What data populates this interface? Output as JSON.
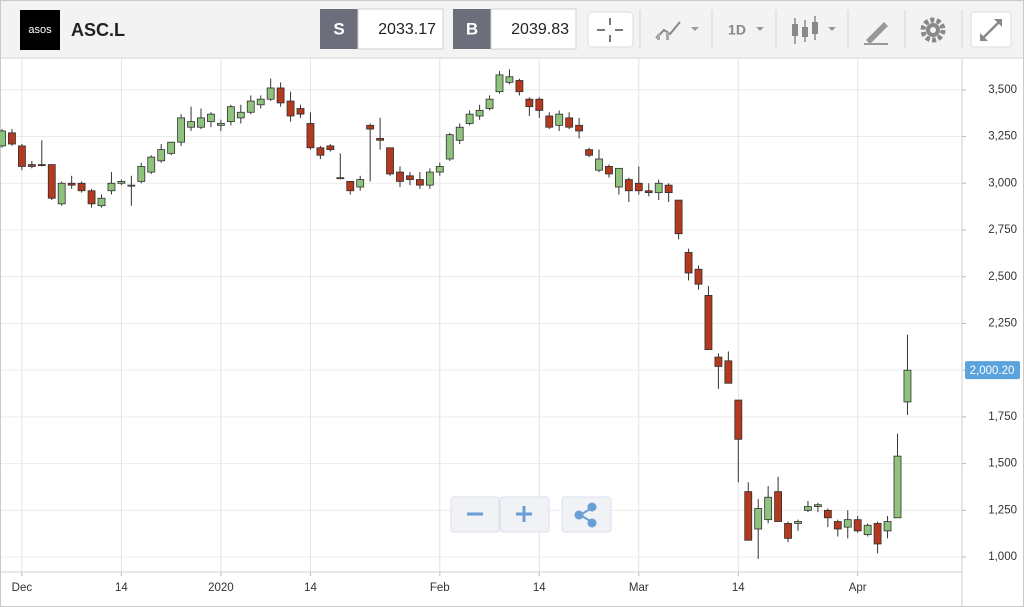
{
  "toolbar": {
    "logo": "asos",
    "symbol": "ASC.L",
    "sell_label": "S",
    "sell": 2033.17,
    "buy_label": "B",
    "buy": 2039.83,
    "interval": "1D"
  },
  "chart_data": {
    "type": "candlestick",
    "categories": [
      null,
      null,
      "Dec",
      null,
      null,
      null,
      null,
      null,
      null,
      null,
      null,
      null,
      "14",
      null,
      null,
      null,
      null,
      null,
      null,
      null,
      null,
      null,
      "2020",
      null,
      null,
      null,
      null,
      null,
      null,
      null,
      null,
      "14",
      null,
      null,
      null,
      null,
      null,
      null,
      null,
      null,
      null,
      null,
      null,
      null,
      "Feb",
      null,
      null,
      null,
      null,
      null,
      null,
      null,
      null,
      null,
      "14",
      null,
      null,
      null,
      null,
      null,
      null,
      null,
      null,
      null,
      "Mar",
      null,
      null,
      null,
      null,
      null,
      null,
      null,
      null,
      null,
      "14",
      null,
      null,
      null,
      null,
      null,
      null,
      null,
      null,
      null,
      null,
      null,
      "Apr",
      null,
      null,
      null,
      null,
      null
    ],
    "open": [
      3200,
      3270,
      3200,
      3100,
      3100,
      3100,
      2890,
      3000,
      3000,
      2960,
      2880,
      2960,
      3000,
      2990,
      3010,
      3060,
      3120,
      3160,
      3220,
      3300,
      3300,
      3330,
      3310,
      3330,
      3350,
      3380,
      3420,
      3450,
      3510,
      3440,
      3400,
      3320,
      3190,
      3200,
      3030,
      3010,
      2980,
      3310,
      3240,
      3190,
      3060,
      3040,
      3020,
      2990,
      3060,
      3130,
      3230,
      3320,
      3360,
      3400,
      3490,
      3540,
      3550,
      3450,
      3450,
      3360,
      3310,
      3350,
      3310,
      3180,
      3070,
      3090,
      2980,
      3020,
      3000,
      2960,
      2950,
      2990,
      2910,
      2630,
      2540,
      2400,
      2070,
      2050,
      1840,
      1350,
      1150,
      1200,
      1350,
      1180,
      1180,
      1250,
      1270,
      1250,
      1190,
      1160,
      1200,
      1120,
      1180,
      1140,
      1210,
      1830
    ],
    "high": [
      3290,
      3290,
      3210,
      3120,
      3230,
      3100,
      3010,
      3040,
      3010,
      2970,
      2940,
      3060,
      3020,
      3040,
      3110,
      3150,
      3210,
      3220,
      3370,
      3410,
      3400,
      3380,
      3340,
      3420,
      3420,
      3470,
      3470,
      3560,
      3540,
      3490,
      3420,
      3380,
      3200,
      3210,
      3160,
      3010,
      3040,
      3320,
      3350,
      3190,
      3090,
      3060,
      3060,
      3080,
      3110,
      3270,
      3320,
      3390,
      3420,
      3470,
      3600,
      3610,
      3560,
      3460,
      3460,
      3380,
      3390,
      3380,
      3350,
      3190,
      3180,
      3100,
      3080,
      3030,
      3090,
      3000,
      3020,
      3000,
      2910,
      2650,
      2560,
      2450,
      2090,
      2100,
      1840,
      1400,
      1310,
      1380,
      1430,
      1190,
      1200,
      1300,
      1290,
      1260,
      1200,
      1250,
      1220,
      1180,
      1190,
      1220,
      1660,
      2190
    ],
    "low": [
      3190,
      3200,
      3070,
      3080,
      3090,
      2910,
      2880,
      2970,
      2950,
      2870,
      2870,
      2940,
      2990,
      2880,
      3000,
      3050,
      3110,
      3150,
      3200,
      3280,
      3290,
      3300,
      3280,
      3310,
      3320,
      3370,
      3400,
      3440,
      3410,
      3330,
      3350,
      3180,
      3130,
      3170,
      3020,
      2940,
      2960,
      3010,
      3180,
      3040,
      2980,
      2990,
      2970,
      2970,
      3040,
      3120,
      3210,
      3310,
      3340,
      3390,
      3480,
      3530,
      3470,
      3360,
      3350,
      3290,
      3280,
      3290,
      3240,
      3140,
      3060,
      3030,
      2940,
      2900,
      2940,
      2930,
      2910,
      2900,
      2700,
      2480,
      2430,
      2110,
      1900,
      1930,
      1400,
      1090,
      990,
      1180,
      1190,
      1080,
      1140,
      1240,
      1240,
      1160,
      1110,
      1100,
      1130,
      1110,
      1020,
      1100,
      1210,
      1760
    ],
    "close": [
      3280,
      3210,
      3090,
      3090,
      3095,
      2920,
      3000,
      2990,
      2960,
      2890,
      2920,
      3000,
      3010,
      2990,
      3090,
      3140,
      3180,
      3220,
      3350,
      3330,
      3350,
      3370,
      3320,
      3410,
      3380,
      3440,
      3450,
      3510,
      3430,
      3360,
      3370,
      3190,
      3150,
      3180,
      3030,
      2960,
      3020,
      3290,
      3230,
      3050,
      3010,
      3020,
      2990,
      3060,
      3090,
      3260,
      3300,
      3370,
      3390,
      3450,
      3580,
      3570,
      3490,
      3410,
      3390,
      3300,
      3370,
      3300,
      3280,
      3150,
      3130,
      3050,
      3080,
      2960,
      2960,
      2950,
      3000,
      2950,
      2730,
      2520,
      2460,
      2110,
      2020,
      1930,
      1630,
      1090,
      1260,
      1320,
      1190,
      1100,
      1190,
      1270,
      1280,
      1210,
      1150,
      1200,
      1140,
      1170,
      1070,
      1190,
      1540,
      2000
    ],
    "up_color": "#8fc27c",
    "down_color": "#b3391f",
    "ylim": [
      920,
      3665
    ],
    "yticks": [
      {
        "value": 1000,
        "label": "1,000"
      },
      {
        "value": 1250,
        "label": "1,250"
      },
      {
        "value": 1500,
        "label": "1,500"
      },
      {
        "value": 1750,
        "label": "1,750"
      },
      {
        "value": 2000,
        "label": "2,000"
      },
      {
        "value": 2250,
        "label": "2,250"
      },
      {
        "value": 2500,
        "label": "2,500"
      },
      {
        "value": 2750,
        "label": "2,750"
      },
      {
        "value": 3000,
        "label": "3,000"
      },
      {
        "value": 3250,
        "label": "3,250"
      },
      {
        "value": 3500,
        "label": "3,500"
      }
    ],
    "last_price": {
      "value": 2000.2,
      "label": "2,000.20"
    },
    "grid": true
  }
}
